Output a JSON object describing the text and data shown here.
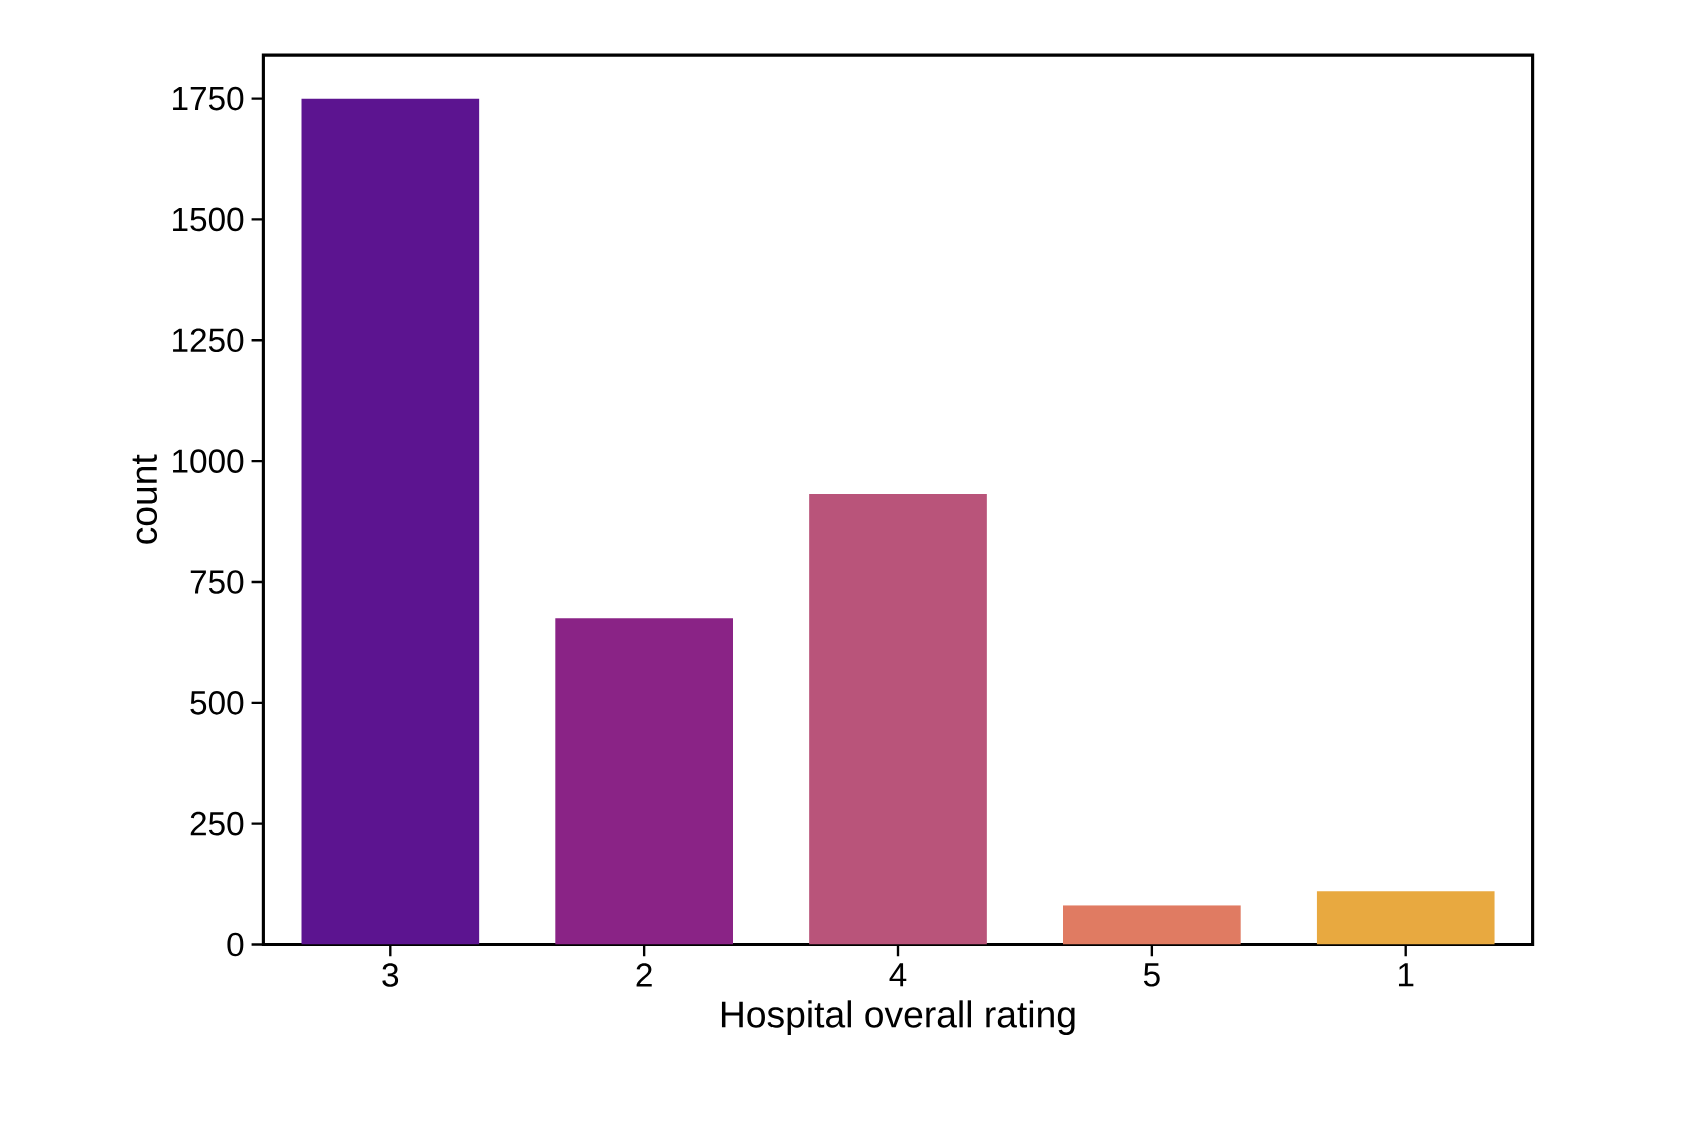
{
  "chart_data": {
    "type": "bar",
    "xlabel": "Hospital overall rating",
    "ylabel": "count",
    "categories": [
      "3",
      "2",
      "4",
      "5",
      "1"
    ],
    "values": [
      1750,
      675,
      932,
      81,
      110
    ],
    "colors": [
      "#5c1490",
      "#8a2386",
      "#b9547a",
      "#e07b62",
      "#e8a940"
    ],
    "ylim": [
      0,
      1840
    ],
    "yticks": [
      0,
      250,
      500,
      750,
      1000,
      1250,
      1500,
      1750
    ],
    "grid": false
  }
}
